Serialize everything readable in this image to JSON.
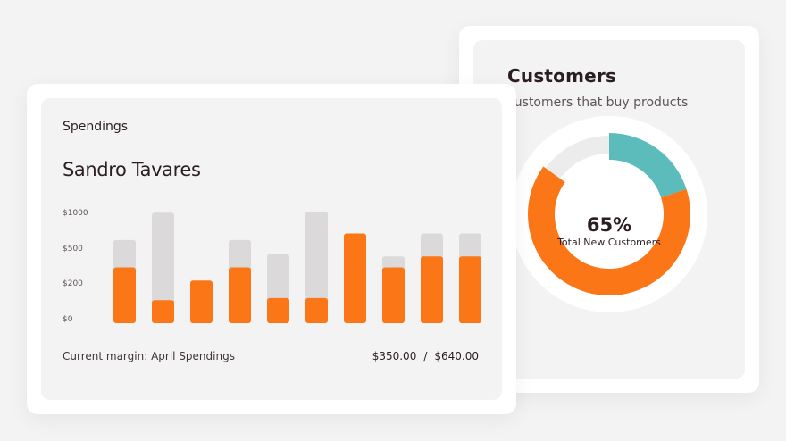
{
  "customers": {
    "title": "Customers",
    "subtitle": "Customers that buy products",
    "donut": {
      "value_label": "65%",
      "label": "Total New Customers",
      "value_percent": 65,
      "teal_percent": 20,
      "orange_color": "#fb7617",
      "teal_color": "#5bbcbb",
      "track_color": "#ececec"
    }
  },
  "spendings": {
    "heading": "Spendings",
    "name": "Sandro Tavares",
    "footer_label": "Current margin: April Spendings",
    "footer_current": "$350.00",
    "footer_separator": "/",
    "footer_total": "$640.00"
  },
  "chart_data": {
    "type": "bar",
    "categories": [
      "",
      "",
      "",
      "",
      "",
      "",
      "",
      "",
      "",
      ""
    ],
    "y_tick_labels": [
      "$1000",
      "$500",
      "$200",
      "$0"
    ],
    "series": [
      {
        "values": [
          0.76,
          1.01,
          0.0,
          0.76,
          0.63,
          1.02,
          0.82,
          0.61,
          0.82,
          0.82
        ]
      },
      {
        "values": [
          0.51,
          0.21,
          0.39,
          0.51,
          0.23,
          0.23,
          0.82,
          0.51,
          0.61,
          0.61
        ]
      }
    ],
    "ylim": [
      0,
      1.02
    ],
    "colors": {
      "background_bar": "#dbd9da",
      "foreground_bar": "#fb7617"
    },
    "grid": false,
    "legend": "none"
  }
}
